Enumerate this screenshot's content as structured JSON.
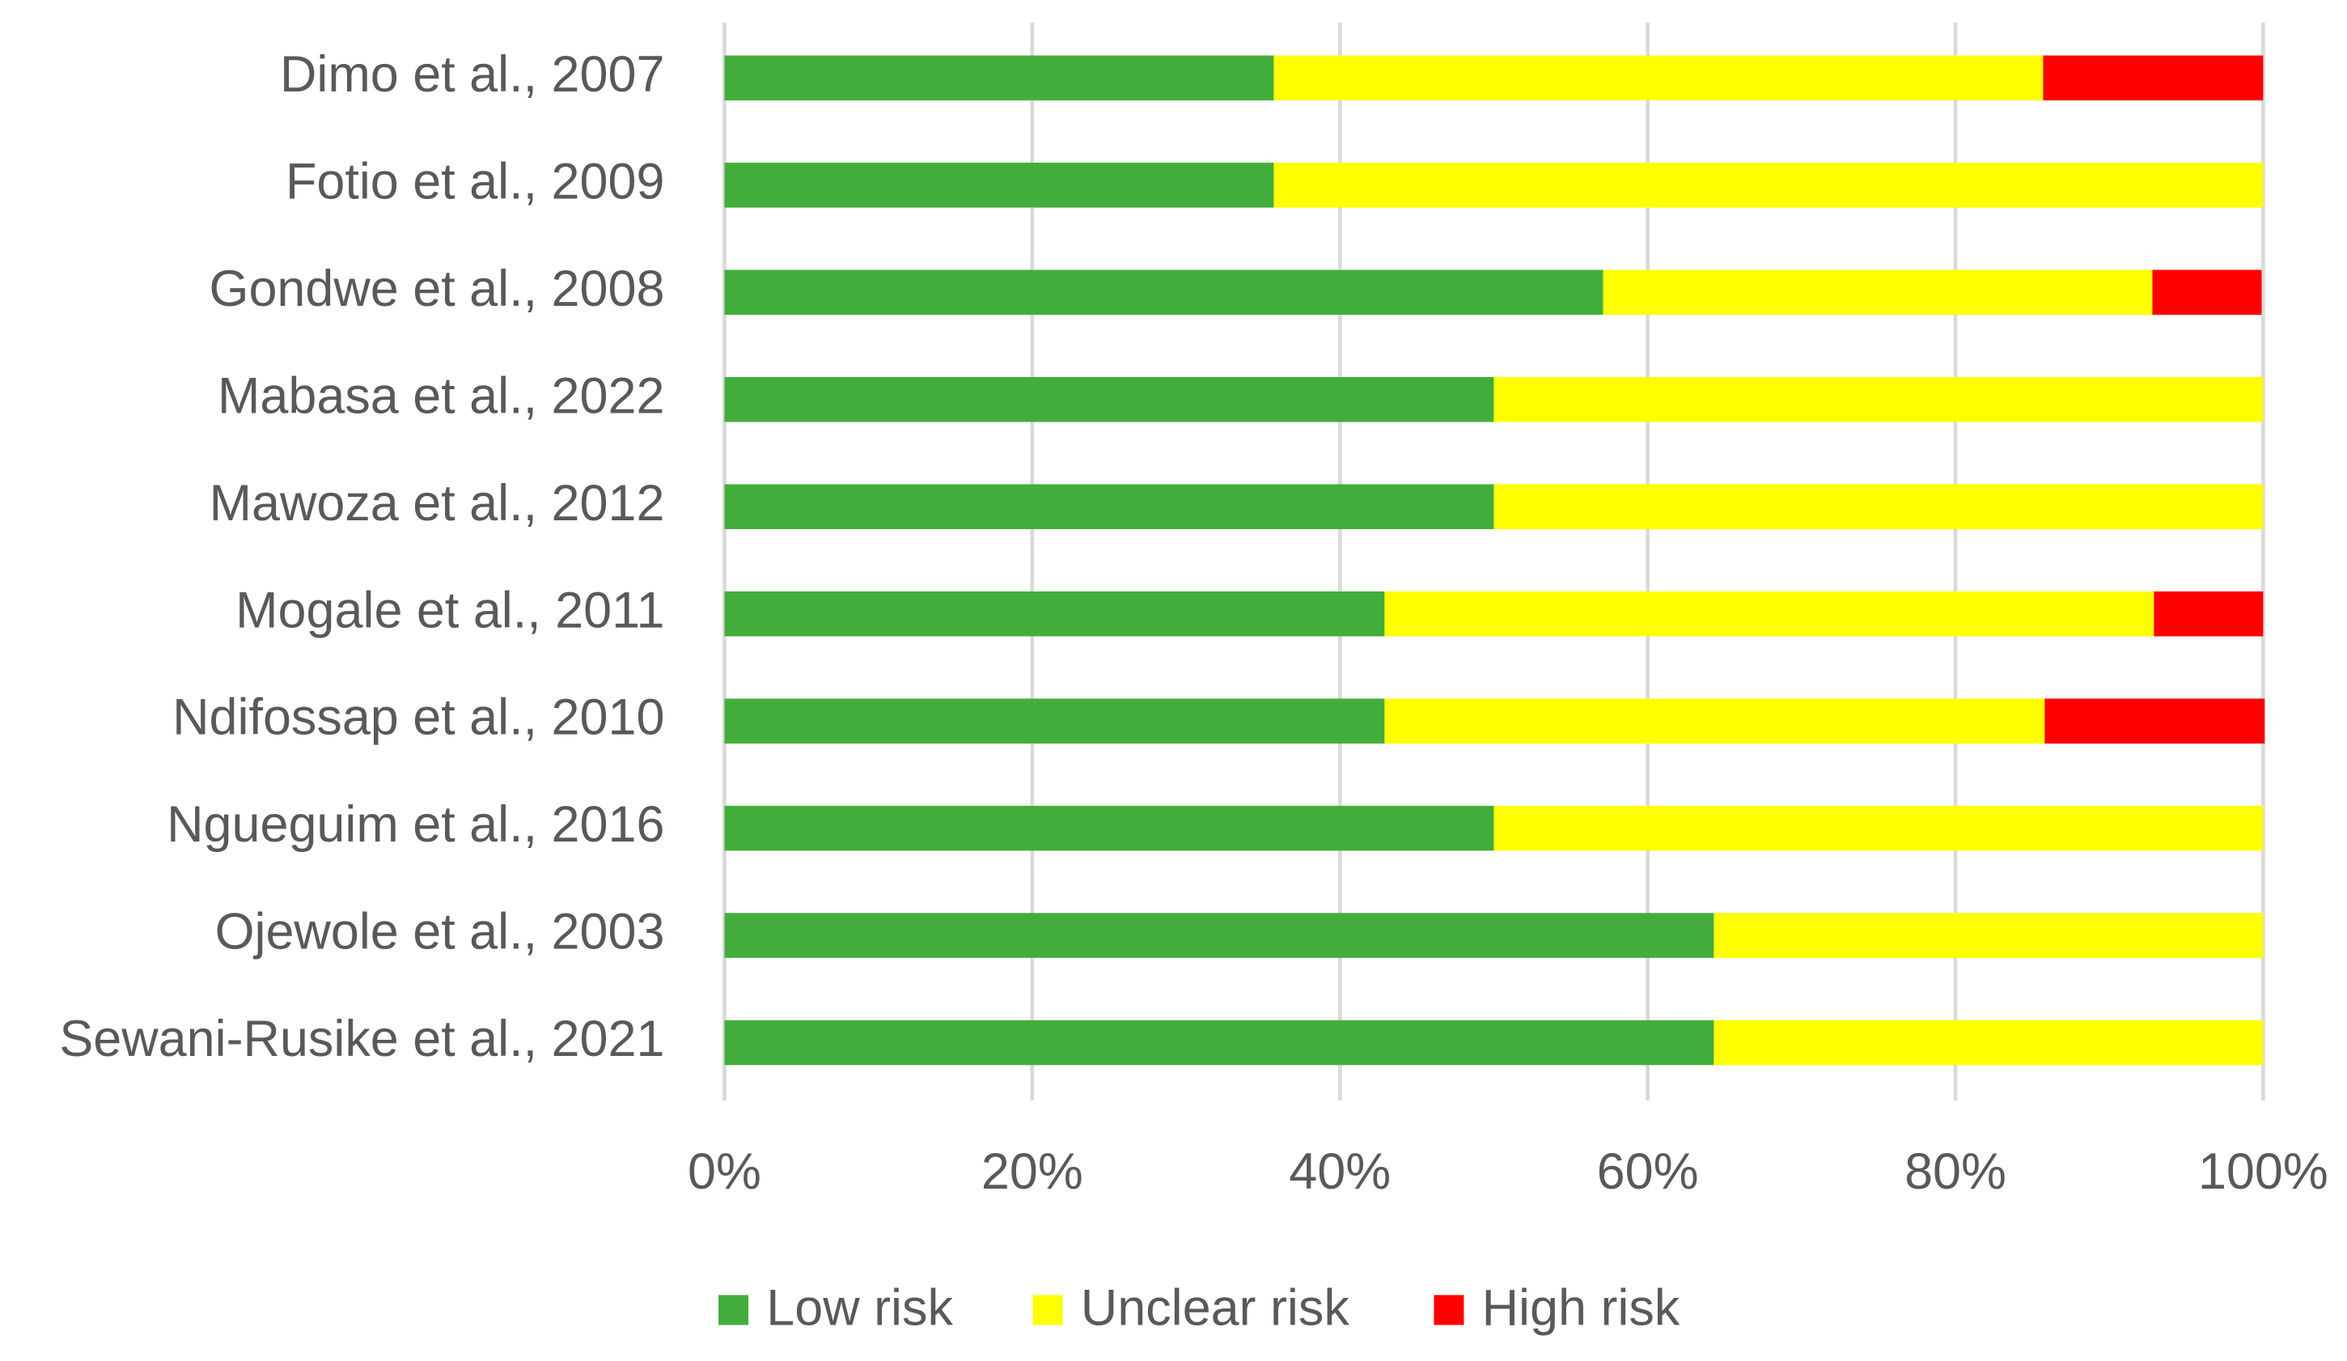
{
  "chart_data": {
    "type": "stacked_bar_horizontal",
    "categories": [
      "Dimo et al., 2007",
      "Fotio et al., 2009",
      "Gondwe et al., 2008",
      "Mabasa et al., 2022",
      "Mawoza et al., 2012",
      "Mogale et al., 2011",
      "Ndifossap et al., 2010",
      "Ngueguim et al., 2016",
      "Ojewole et al., 2003",
      "Sewani-Rusike et al., 2021"
    ],
    "series": [
      {
        "name": "Low risk",
        "color": "#43ad3c",
        "values": [
          35.7,
          35.7,
          57.1,
          50,
          50,
          42.9,
          42.9,
          50,
          64.3,
          64.3
        ]
      },
      {
        "name": "Unclear risk",
        "color": "#ffff00",
        "values": [
          50,
          64.3,
          35.7,
          50,
          50,
          50,
          42.9,
          50,
          35.7,
          35.7
        ]
      },
      {
        "name": "High risk",
        "color": "#ff0000",
        "values": [
          14.3,
          0,
          7.1,
          0,
          0,
          7.1,
          14.3,
          0,
          0,
          0
        ]
      }
    ],
    "xlim": [
      0,
      100
    ],
    "xticks": [
      {
        "value": 0,
        "label": "0%"
      },
      {
        "value": 20,
        "label": "20%"
      },
      {
        "value": 40,
        "label": "40%"
      },
      {
        "value": 60,
        "label": "60%"
      },
      {
        "value": 80,
        "label": "80%"
      },
      {
        "value": 100,
        "label": "100%"
      }
    ],
    "grid": true,
    "legend": "bottom"
  }
}
